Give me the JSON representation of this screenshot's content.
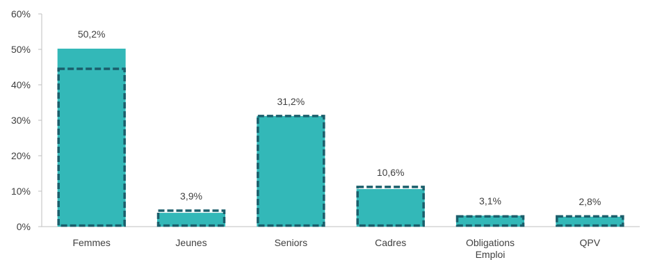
{
  "chart_data": {
    "type": "bar",
    "categories": [
      "Femmes",
      "Jeunes",
      "Seniors",
      "Cadres",
      "Obligations Emploi",
      "QPV"
    ],
    "category_label_lines": [
      [
        "Femmes"
      ],
      [
        "Jeunes"
      ],
      [
        "Seniors"
      ],
      [
        "Cadres"
      ],
      [
        "Obligations",
        "Emploi"
      ],
      [
        "QPV"
      ]
    ],
    "series": [
      {
        "values": [
          50.2,
          3.9,
          31.2,
          10.6,
          3.1,
          2.8
        ]
      },
      {
        "values": [
          44.5,
          4.5,
          31.2,
          11.2,
          2.9,
          2.9
        ]
      }
    ],
    "data_labels": [
      "50,2%",
      "3,9%",
      "31,2%",
      "10,6%",
      "3,1%",
      "2,8%"
    ],
    "ylim": [
      0,
      60
    ],
    "yticks": [
      0,
      10,
      20,
      30,
      40,
      50,
      60
    ],
    "ytick_labels": [
      "0%",
      "10%",
      "20%",
      "30%",
      "40%",
      "50%",
      "60%"
    ],
    "title": "",
    "xlabel": "",
    "ylabel": "",
    "grid": false,
    "colors": {
      "bar_fill": "#33B8B8",
      "dashed_outline": "#1B5E6B",
      "axis": "#BFBFBF",
      "text": "#404040"
    }
  }
}
